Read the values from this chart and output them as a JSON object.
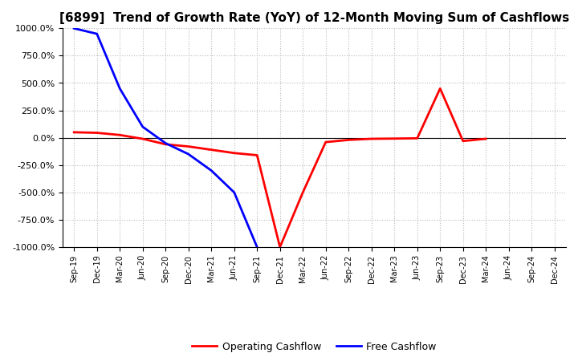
{
  "title": "[6899]  Trend of Growth Rate (YoY) of 12-Month Moving Sum of Cashflows",
  "ylim": [
    -1000,
    1000
  ],
  "yticks": [
    -1000,
    -750,
    -500,
    -250,
    0,
    250,
    500,
    750,
    1000
  ],
  "ytick_labels": [
    "-1000.0%",
    "-750.0%",
    "-500.0%",
    "-250.0%",
    "0.0%",
    "250.0%",
    "500.0%",
    "750.0%",
    "1000.0%"
  ],
  "operating_color": "#FF0000",
  "free_color": "#0000FF",
  "background_color": "#FFFFFF",
  "grid_color": "#BBBBBB",
  "legend_labels": [
    "Operating Cashflow",
    "Free Cashflow"
  ],
  "x_labels": [
    "Sep-19",
    "Dec-19",
    "Mar-20",
    "Jun-20",
    "Sep-20",
    "Dec-20",
    "Mar-21",
    "Jun-21",
    "Sep-21",
    "Dec-21",
    "Mar-22",
    "Jun-22",
    "Sep-22",
    "Dec-22",
    "Mar-23",
    "Jun-23",
    "Sep-23",
    "Dec-23",
    "Mar-24",
    "Jun-24",
    "Sep-24",
    "Dec-24"
  ],
  "operating_cashflow_x": [
    0,
    1,
    2,
    3,
    4,
    5,
    6,
    7,
    8,
    9,
    10,
    11,
    12,
    13,
    14,
    15,
    16,
    17,
    18
  ],
  "operating_cashflow_y": [
    50,
    45,
    25,
    -10,
    -60,
    -80,
    -110,
    -140,
    -160,
    -1000,
    -500,
    -40,
    -20,
    -10,
    -8,
    -5,
    450,
    -30,
    -10
  ],
  "free_cashflow_x": [
    0,
    1,
    2,
    3,
    4,
    5,
    6,
    7,
    8,
    9,
    10
  ],
  "free_cashflow_y": [
    1000,
    950,
    450,
    100,
    -50,
    -150,
    -300,
    -500,
    -1000,
    -1000,
    -1000
  ]
}
